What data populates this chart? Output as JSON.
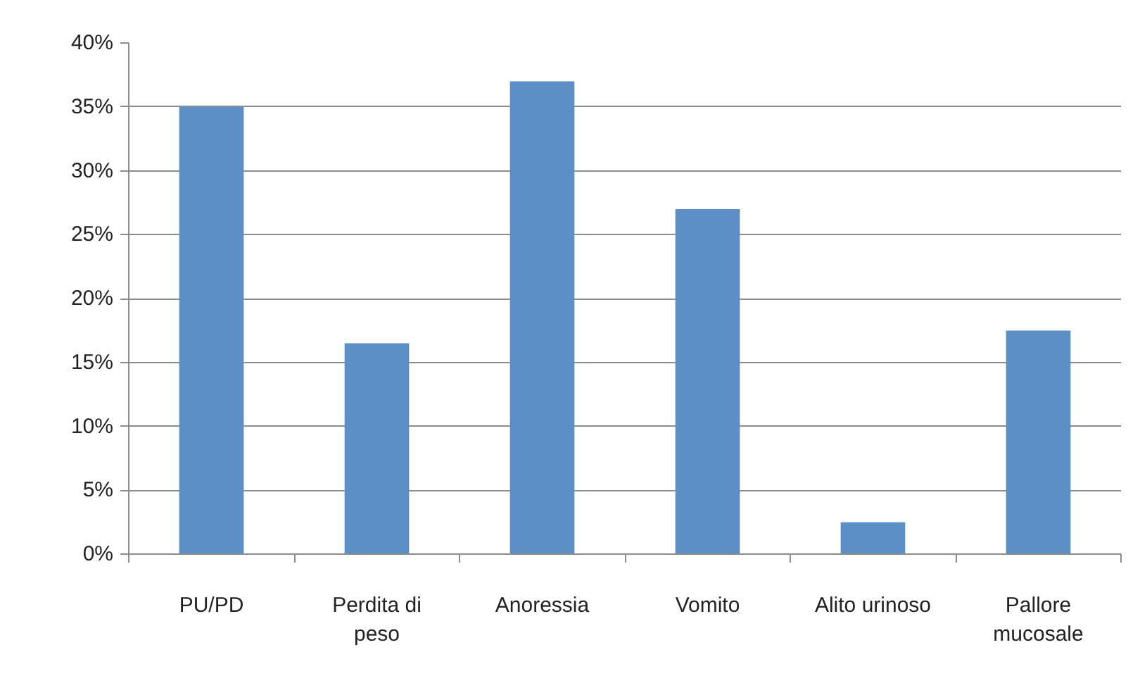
{
  "chart_data": {
    "type": "bar",
    "categories": [
      "PU/PD",
      "Perdita di peso",
      "Anoressia",
      "Vomito",
      "Alito urinoso",
      "Pallore mucosale"
    ],
    "values": [
      35,
      16.5,
      37,
      27,
      2.5,
      17.5
    ],
    "color": "#5b8fc6",
    "ylim": [
      0,
      40
    ],
    "yticks": [
      {
        "value": 0,
        "label": "0%"
      },
      {
        "value": 5,
        "label": "5%"
      },
      {
        "value": 10,
        "label": "10%"
      },
      {
        "value": 15,
        "label": "15%"
      },
      {
        "value": 20,
        "label": "20%"
      },
      {
        "value": 25,
        "label": "25%"
      },
      {
        "value": 30,
        "label": "30%"
      },
      {
        "value": 35,
        "label": "35%"
      },
      {
        "value": 40,
        "label": "40%"
      }
    ],
    "grid": "y"
  }
}
